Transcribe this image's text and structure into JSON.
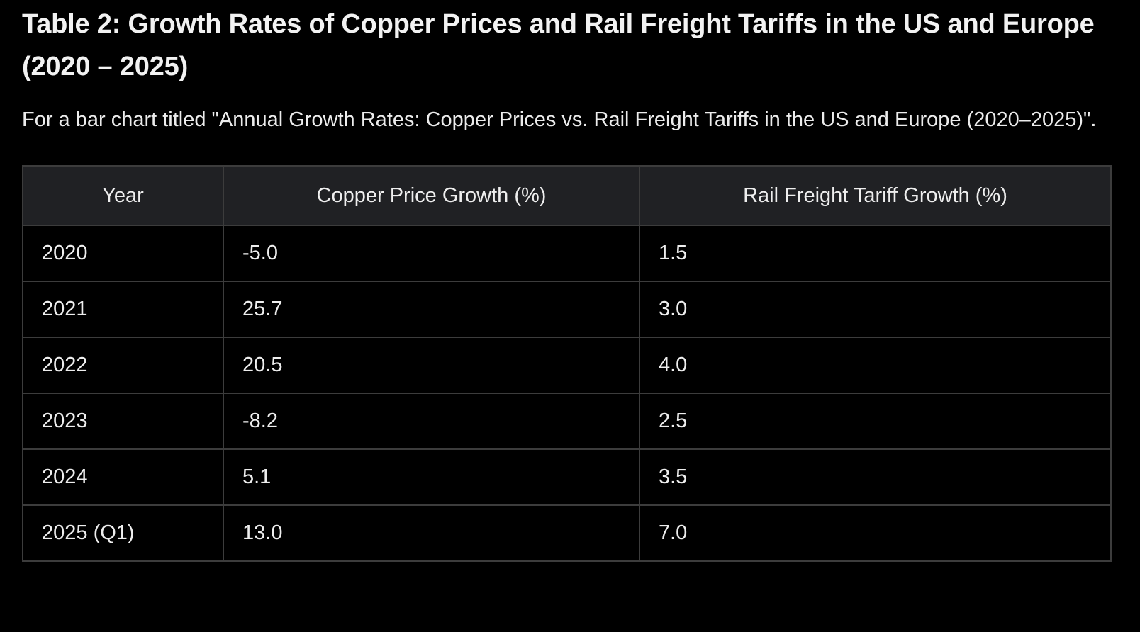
{
  "heading": {
    "title": "Table 2: Growth Rates of Copper Prices and Rail Freight Tariffs in the US and Europe (2020 – 2025)"
  },
  "intro": {
    "text": "For a bar chart titled \"Annual Growth Rates: Copper Prices vs. Rail Freight Tariffs in the US and Europe (2020–2025)\"."
  },
  "table": {
    "headers": [
      "Year",
      "Copper Price Growth (%)",
      "Rail Freight Tariff Growth (%)"
    ],
    "rows": [
      [
        "2020",
        "-5.0",
        "1.5"
      ],
      [
        "2021",
        "25.7",
        "3.0"
      ],
      [
        "2022",
        "20.5",
        "4.0"
      ],
      [
        "2023",
        "-8.2",
        "2.5"
      ],
      [
        "2024",
        "5.1",
        "3.5"
      ],
      [
        "2025 (Q1)",
        "13.0",
        "7.0"
      ]
    ]
  }
}
